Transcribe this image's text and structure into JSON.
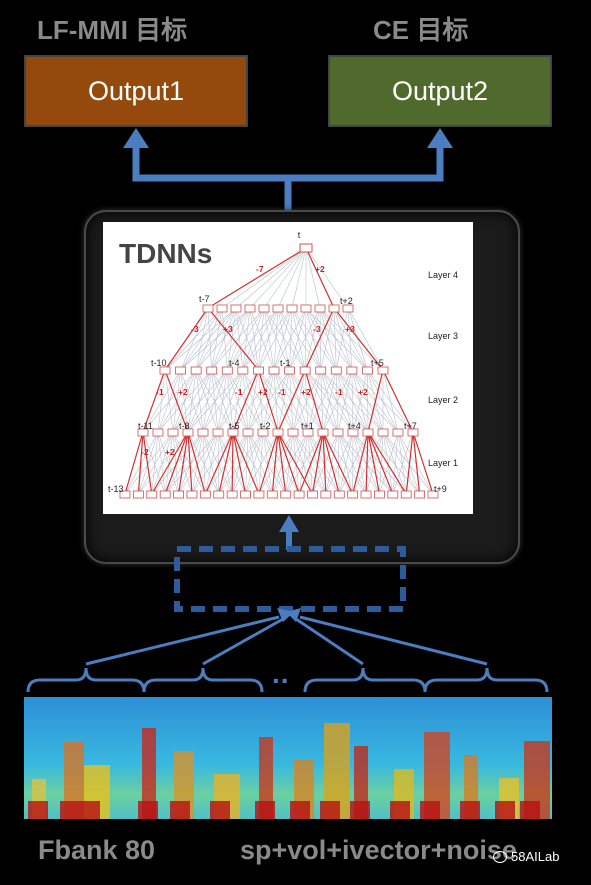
{
  "targets": {
    "left_label": "LF-MMI 目标",
    "right_label": "CE 目标"
  },
  "outputs": {
    "output1": {
      "label": "Output1",
      "color": "#954a0d"
    },
    "output2": {
      "label": "Output2",
      "color": "#506a2e"
    }
  },
  "tdnn": {
    "title": "TDNNs",
    "top_node_label": "t",
    "layer_labels": [
      "Layer 4",
      "Layer 3",
      "Layer 2",
      "Layer 1"
    ],
    "layer3_nodes": [
      "t-7",
      "t+2"
    ],
    "layer3_offsets": [
      "-7",
      "+2"
    ],
    "layer2_nodes": [
      "t-10",
      "t-4",
      "t-1",
      "t+5"
    ],
    "layer2_offsets": [
      "-3",
      "+3",
      "-3",
      "+3"
    ],
    "layer1_nodes": [
      "t-11",
      "t-8",
      "t-5",
      "t-2",
      "t+1",
      "t+4",
      "t+7"
    ],
    "layer1_offsets": [
      "-1",
      "+2",
      "-1",
      "+2",
      "-1",
      "+2",
      "-1",
      "+2"
    ],
    "input_offsets": [
      "-2",
      "+2"
    ],
    "input_left_label": "t-13",
    "input_right_label": "t+9"
  },
  "ellipsis": "..",
  "features": {
    "left_label": "Fbank 80",
    "right_label": "sp+vol+ivector+noise"
  },
  "watermark": "58AILab",
  "colors": {
    "arrow_blue": "#4a7ec0",
    "red_connection": "#d03030",
    "gray_label": "#8a8a8a"
  }
}
